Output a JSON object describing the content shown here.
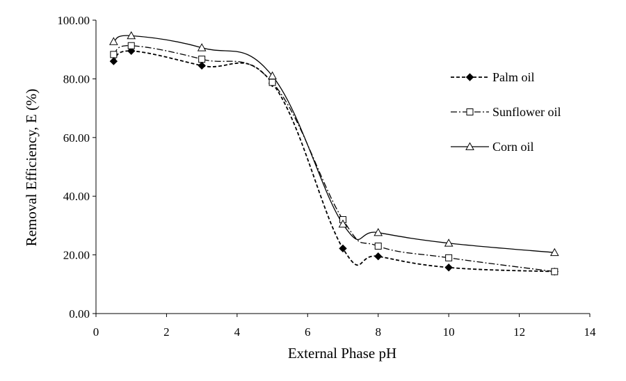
{
  "chart_data": {
    "type": "line",
    "xlabel": "External Phase pH",
    "ylabel": "Removal Efficiency, E (%)",
    "xlim": [
      0,
      14
    ],
    "ylim": [
      0,
      100
    ],
    "x_ticks": [
      "0",
      "2",
      "4",
      "6",
      "8",
      "10",
      "12",
      "14"
    ],
    "y_ticks": [
      "0.00",
      "20.00",
      "40.00",
      "60.00",
      "80.00",
      "100.00"
    ],
    "grid": false,
    "legend_position": "right",
    "series": [
      {
        "name": "Palm oil",
        "marker": "filled-diamond",
        "line_style": "dashed",
        "color": "#000000",
        "x": [
          0.5,
          1,
          3,
          5,
          7,
          8,
          10,
          13
        ],
        "y": [
          86.0,
          89.5,
          84.5,
          78.5,
          22.2,
          19.5,
          15.7,
          14.3
        ]
      },
      {
        "name": "Sunflower oil",
        "marker": "open-square",
        "line_style": "dash-dot",
        "color": "#000000",
        "x": [
          0.5,
          1,
          3,
          5,
          7,
          8,
          10,
          13
        ],
        "y": [
          88.3,
          91.3,
          86.7,
          78.8,
          32.0,
          23.0,
          19.0,
          14.3
        ]
      },
      {
        "name": "Corn oil",
        "marker": "open-triangle",
        "line_style": "solid",
        "color": "#000000",
        "x": [
          0.5,
          1,
          3,
          5,
          7,
          8,
          10,
          13
        ],
        "y": [
          92.7,
          94.7,
          90.6,
          81.0,
          30.5,
          27.6,
          24.0,
          20.8
        ]
      }
    ]
  }
}
